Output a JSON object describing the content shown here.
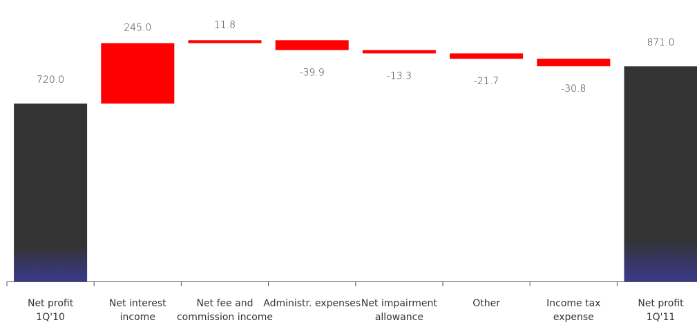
{
  "chart_data": {
    "type": "waterfall",
    "title": "",
    "xlabel": "",
    "ylabel": "",
    "ylim": [
      0,
      1000
    ],
    "grid": false,
    "legend": "none",
    "categories": [
      {
        "lines": [
          "Net profit",
          "1Q'10"
        ]
      },
      {
        "lines": [
          "Net interest",
          "income"
        ]
      },
      {
        "lines": [
          "Net fee and",
          "commission income"
        ]
      },
      {
        "lines": [
          "Administr. expenses"
        ]
      },
      {
        "lines": [
          "Net impairment",
          "allowance"
        ]
      },
      {
        "lines": [
          "Other"
        ]
      },
      {
        "lines": [
          "Income tax",
          "expense"
        ]
      },
      {
        "lines": [
          "Net profit",
          "1Q'11"
        ]
      }
    ],
    "values": [
      720.0,
      245.0,
      11.8,
      -39.9,
      -13.3,
      -21.7,
      -30.8,
      871.0
    ],
    "value_labels": [
      "720.0",
      "245.0",
      "11.8",
      "-39.9",
      "-13.3",
      "-21.7",
      "-30.8",
      "871.0"
    ],
    "bar_kind": [
      "total",
      "delta",
      "delta",
      "delta",
      "delta",
      "delta",
      "delta",
      "total"
    ],
    "colors": {
      "total": "#333333",
      "total_gradient_bottom": "#3a3a8c",
      "delta": "#ff0000",
      "axis": "#555555",
      "text": "#333333"
    }
  }
}
